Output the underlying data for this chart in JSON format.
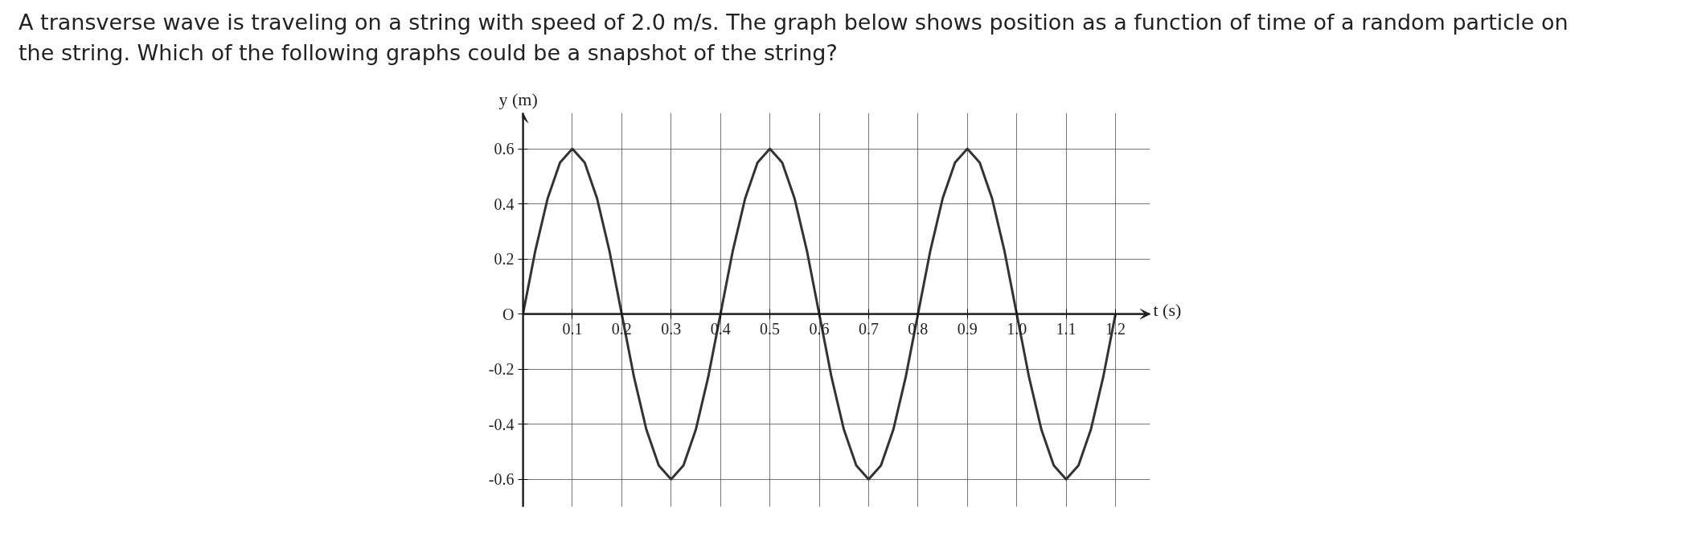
{
  "chart_data": {
    "type": "line",
    "title": "A transverse wave is traveling on a string with speed of 2.0 m/s. The graph below shows position as a function of time of a random particle on the string. Which of the following graphs could be a snapshot of the string?",
    "xlabel": "t (s)",
    "ylabel": "y (m)",
    "series": [
      {
        "color": "#333333",
        "x": [
          0,
          0.025,
          0.05,
          0.075,
          0.1,
          0.125,
          0.15,
          0.175,
          0.2,
          0.225,
          0.25,
          0.275,
          0.3,
          0.325,
          0.35,
          0.375,
          0.4,
          0.425,
          0.45,
          0.475,
          0.5,
          0.525,
          0.55,
          0.575,
          0.6,
          0.625,
          0.65,
          0.675,
          0.7,
          0.725,
          0.75,
          0.775,
          0.8,
          0.825,
          0.85,
          0.875,
          0.9,
          0.925,
          0.95,
          0.975,
          1.0,
          1.025,
          1.05,
          1.075,
          1.1,
          1.125,
          1.15,
          1.175,
          1.2
        ],
        "values": [
          0,
          0.23,
          0.42,
          0.55,
          0.6,
          0.55,
          0.42,
          0.23,
          0,
          -0.23,
          -0.42,
          -0.55,
          -0.6,
          -0.55,
          -0.42,
          -0.23,
          0,
          0.23,
          0.42,
          0.55,
          0.6,
          0.55,
          0.42,
          0.23,
          0,
          -0.23,
          -0.42,
          -0.55,
          -0.6,
          -0.55,
          -0.42,
          -0.23,
          0,
          0.23,
          0.42,
          0.55,
          0.6,
          0.55,
          0.42,
          0.23,
          0,
          -0.23,
          -0.42,
          -0.55,
          -0.6,
          -0.55,
          -0.42,
          -0.23,
          0
        ]
      }
    ],
    "xlim": [
      0,
      1.27
    ],
    "ylim": [
      -0.7,
      0.73
    ],
    "xticks": [
      0.1,
      0.2,
      0.3,
      0.4,
      0.5,
      0.6,
      0.7,
      0.8,
      0.9,
      {
        "value": 1.0,
        "label": "1.0"
      },
      1.1,
      1.2
    ],
    "yticks": [
      -0.6,
      -0.4,
      -0.2,
      {
        "value": 0,
        "label": "O"
      },
      0.2,
      0.4,
      0.6
    ],
    "grid": true,
    "marker": "none",
    "line_style": "solid"
  }
}
